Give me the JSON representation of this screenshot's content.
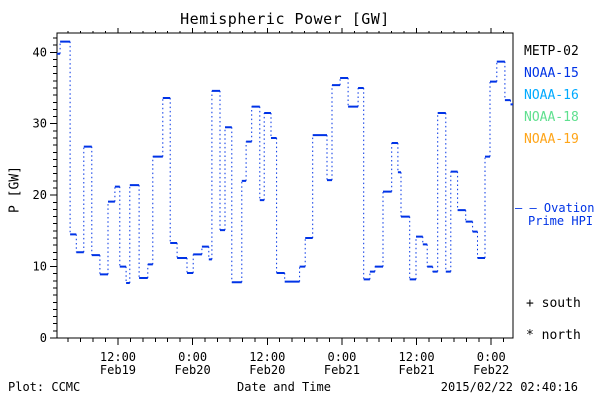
{
  "title": "Hemispheric Power [GW]",
  "axes": {
    "ylabel": "P [GW]",
    "xlabel": "Date and Time"
  },
  "footer": {
    "left": "Plot: CCMC",
    "right": "2015/02/22 02:40:16"
  },
  "legend": {
    "satellites": [
      {
        "label": "METP-02",
        "color": "#000000"
      },
      {
        "label": "NOAA-15",
        "color": "#0033e6"
      },
      {
        "label": "NOAA-16",
        "color": "#00aaff"
      },
      {
        "label": "NOAA-18",
        "color": "#5fe08f"
      },
      {
        "label": "NOAA-19",
        "color": "#ffa519"
      }
    ],
    "model": {
      "dash_sample": "– –",
      "line1": "Ovation",
      "line2": "Prime HPI",
      "color": "#0033e6"
    },
    "markers": [
      {
        "symbol": "+",
        "label": "south"
      },
      {
        "symbol": "*",
        "label": "north"
      }
    ]
  },
  "chart_data": {
    "type": "line",
    "style": "step-post",
    "title": "Hemispheric Power [GW]",
    "xlabel": "Date and Time",
    "ylabel": "P [GW]",
    "x_unit": "hours since 2015-02-19 00:00 UT",
    "xlim": [
      2.2,
      75.5
    ],
    "ylim": [
      0,
      42.7
    ],
    "grid": false,
    "y_major_ticks": [
      0,
      10,
      20,
      30,
      40
    ],
    "y_minor_step": 1,
    "x_minor_step": 2,
    "x_major_ticks": [
      {
        "t": 12,
        "time": "12:00",
        "date": "Feb19"
      },
      {
        "t": 24,
        "time": "0:00",
        "date": "Feb20"
      },
      {
        "t": 36,
        "time": "12:00",
        "date": "Feb20"
      },
      {
        "t": 48,
        "time": "0:00",
        "date": "Feb21"
      },
      {
        "t": 60,
        "time": "12:00",
        "date": "Feb21"
      },
      {
        "t": 72,
        "time": "0:00",
        "date": "Feb22"
      }
    ],
    "series": [
      {
        "name": "Ovation Prime HPI",
        "color": "#0033e6",
        "points": [
          [
            2.2,
            39.8
          ],
          [
            2.7,
            41.5
          ],
          [
            4.3,
            14.5
          ],
          [
            5.3,
            12.0
          ],
          [
            6.5,
            26.8
          ],
          [
            7.8,
            11.6
          ],
          [
            9.1,
            8.9
          ],
          [
            10.4,
            19.1
          ],
          [
            11.5,
            21.2
          ],
          [
            12.3,
            10.0
          ],
          [
            13.3,
            7.7
          ],
          [
            13.9,
            21.4
          ],
          [
            15.4,
            8.4
          ],
          [
            16.8,
            10.3
          ],
          [
            17.6,
            25.4
          ],
          [
            19.2,
            33.6
          ],
          [
            20.4,
            13.3
          ],
          [
            21.5,
            11.2
          ],
          [
            23.1,
            9.1
          ],
          [
            24.1,
            11.7
          ],
          [
            25.5,
            12.8
          ],
          [
            26.6,
            11.0
          ],
          [
            27.1,
            34.6
          ],
          [
            28.4,
            15.1
          ],
          [
            29.2,
            29.5
          ],
          [
            30.3,
            7.8
          ],
          [
            31.9,
            22.0
          ],
          [
            32.6,
            27.5
          ],
          [
            33.5,
            32.4
          ],
          [
            34.8,
            19.3
          ],
          [
            35.5,
            31.5
          ],
          [
            36.6,
            28.0
          ],
          [
            37.5,
            9.1
          ],
          [
            38.8,
            7.9
          ],
          [
            41.2,
            10.0
          ],
          [
            42.1,
            14.0
          ],
          [
            43.3,
            28.4
          ],
          [
            45.6,
            22.1
          ],
          [
            46.4,
            35.4
          ],
          [
            47.7,
            36.4
          ],
          [
            49.0,
            32.4
          ],
          [
            50.6,
            35.0
          ],
          [
            51.5,
            8.2
          ],
          [
            52.5,
            9.3
          ],
          [
            53.3,
            10.0
          ],
          [
            54.6,
            20.5
          ],
          [
            56.0,
            27.3
          ],
          [
            57.0,
            23.2
          ],
          [
            57.5,
            17.0
          ],
          [
            58.9,
            8.2
          ],
          [
            59.9,
            14.2
          ],
          [
            61.0,
            13.1
          ],
          [
            61.7,
            10.0
          ],
          [
            62.6,
            9.3
          ],
          [
            63.4,
            31.5
          ],
          [
            64.7,
            9.3
          ],
          [
            65.5,
            23.3
          ],
          [
            66.6,
            17.9
          ],
          [
            67.9,
            16.3
          ],
          [
            69.0,
            14.9
          ],
          [
            69.8,
            11.2
          ],
          [
            71.0,
            25.4
          ],
          [
            71.8,
            35.9
          ],
          [
            72.9,
            38.7
          ],
          [
            74.2,
            33.3
          ],
          [
            75.1,
            32.7
          ]
        ]
      }
    ]
  }
}
